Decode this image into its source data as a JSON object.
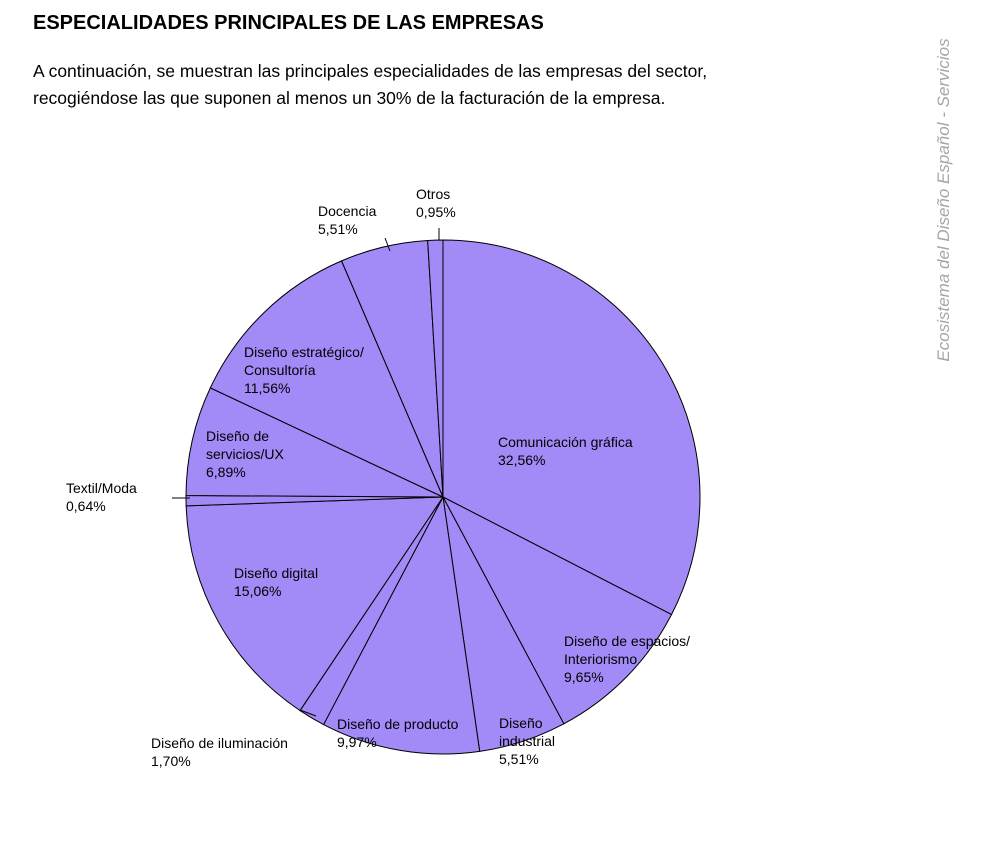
{
  "page": {
    "title": "ESPECIALIDADES PRINCIPALES DE LAS EMPRESAS",
    "intro": "A continuación, se muestran las principales especialidades de las empresas del sector, recogiéndose las que suponen al menos un 30% de la facturación de la empresa.",
    "side_caption": "Ecosistema del Diseño Español - Servicios"
  },
  "colors": {
    "slice_fill": "#a28af7",
    "slice_stroke": "#000000",
    "caption": "#a6a6a6"
  },
  "chart_data": {
    "type": "pie",
    "title": "ESPECIALIDADES PRINCIPALES DE LAS EMPRESAS",
    "unit": "%",
    "start": "12 o'clock, clockwise",
    "slices": [
      {
        "name": "Comunicación gráfica",
        "label_lines": [
          "Comunicación gráfica"
        ],
        "value": 32.56,
        "value_label": "32,56%"
      },
      {
        "name": "Diseño de espacios/ Interiorismo",
        "label_lines": [
          "Diseño de espacios/",
          "Interiorismo"
        ],
        "value": 9.65,
        "value_label": "9,65%"
      },
      {
        "name": "Diseño industrial",
        "label_lines": [
          "Diseño",
          "industrial"
        ],
        "value": 5.51,
        "value_label": "5,51%"
      },
      {
        "name": "Diseño de producto",
        "label_lines": [
          "Diseño de producto"
        ],
        "value": 9.97,
        "value_label": "9,97%"
      },
      {
        "name": "Diseño de iluminación",
        "label_lines": [
          "Diseño de iluminación"
        ],
        "value": 1.7,
        "value_label": "1,70%"
      },
      {
        "name": "Diseño digital",
        "label_lines": [
          "Diseño digital"
        ],
        "value": 15.06,
        "value_label": "15,06%"
      },
      {
        "name": "Textil/Moda",
        "label_lines": [
          "Textil/Moda"
        ],
        "value": 0.64,
        "value_label": "0,64%"
      },
      {
        "name": "Diseño de servicios/UX",
        "label_lines": [
          "Diseño de",
          "servicios/UX"
        ],
        "value": 6.89,
        "value_label": "6,89%"
      },
      {
        "name": "Diseño estratégico/ Consultoría",
        "label_lines": [
          "Diseño estratégico/",
          "Consultoría"
        ],
        "value": 11.56,
        "value_label": "11,56%"
      },
      {
        "name": "Docencia",
        "label_lines": [
          "Docencia"
        ],
        "value": 5.51,
        "value_label": "5,51%"
      },
      {
        "name": "Otros",
        "label_lines": [
          "Otros"
        ],
        "value": 0.95,
        "value_label": "0,95%"
      }
    ]
  }
}
